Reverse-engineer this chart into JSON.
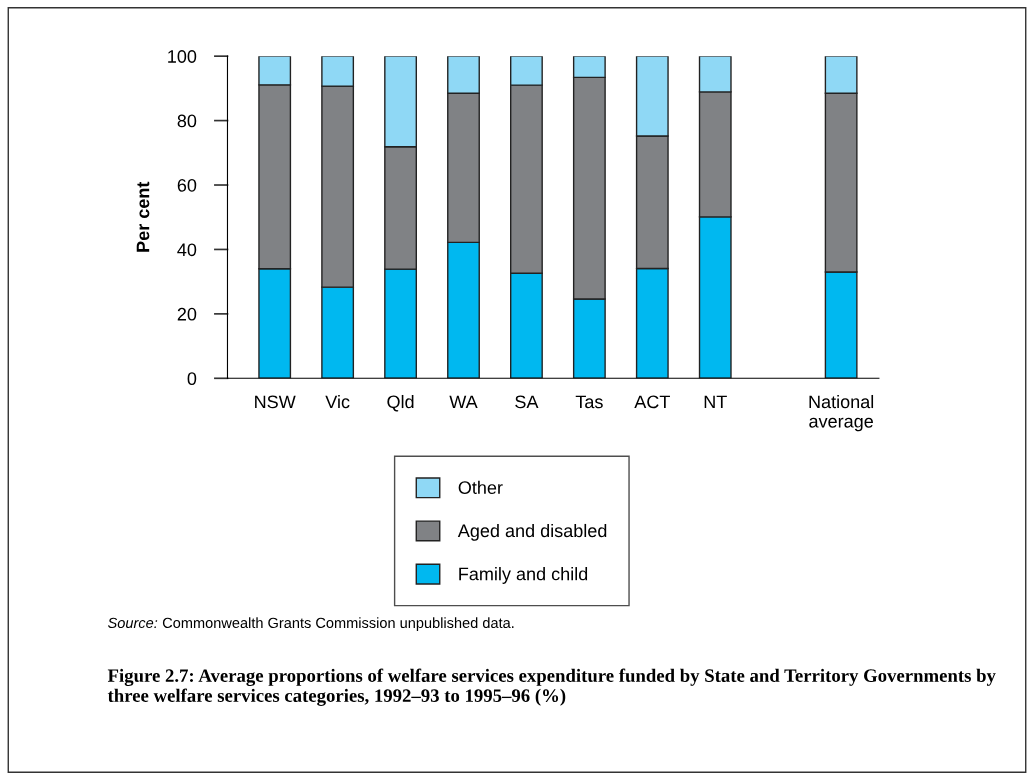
{
  "chart_data": {
    "type": "bar",
    "stacked": true,
    "categories": [
      "NSW",
      "Vic",
      "Qld",
      "WA",
      "SA",
      "Tas",
      "ACT",
      "NT",
      null,
      "National\naverage"
    ],
    "series": [
      {
        "name": "Family and child",
        "color": "#00b8f0",
        "values": [
          34.0,
          28.3,
          33.9,
          42.2,
          32.6,
          24.6,
          34.1,
          50.1,
          null,
          33.0
        ]
      },
      {
        "name": "Aged and disabled",
        "color": "#808285",
        "values": [
          57.1,
          62.4,
          38.0,
          46.3,
          58.4,
          68.8,
          41.1,
          38.8,
          null,
          55.5
        ]
      },
      {
        "name": "Other",
        "color": "#8fd8f5",
        "values": [
          8.9,
          9.3,
          28.1,
          11.5,
          9.0,
          6.6,
          24.8,
          11.1,
          null,
          11.5
        ]
      }
    ],
    "ylabel": "Per cent",
    "ylim": [
      0,
      100
    ],
    "yticks": [
      0,
      20,
      40,
      60,
      80,
      100
    ],
    "grid": false,
    "legend": "bottom",
    "annotations": [
      "Source: Commonwealth Grants Commission unpublished data."
    ],
    "title": "Figure 2.7: Average proportions of welfare services expenditure funded by State and Territory Governments by three welfare services categories, 1992–93 to 1995–96 (%)"
  }
}
